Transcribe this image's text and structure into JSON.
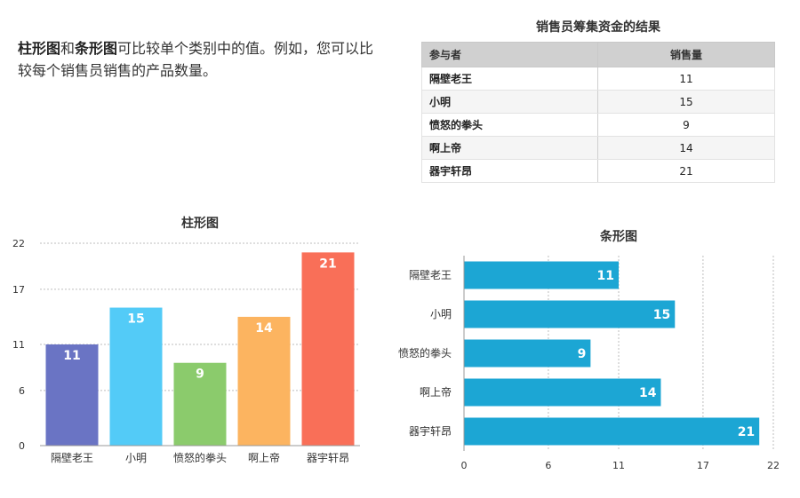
{
  "intro": {
    "bold1": "柱形图",
    "mid1": "和",
    "bold2": "条形图",
    "rest": "可比较单个类别中的值。例如，您可以比较每个销售员销售的产品数量。"
  },
  "table": {
    "title": "销售员筹集资金的结果",
    "headers": [
      "参与者",
      "销售量"
    ],
    "rows": [
      {
        "name": "隔壁老王",
        "value": "11"
      },
      {
        "name": "小明",
        "value": "15"
      },
      {
        "name": "愤怒的拳头",
        "value": "9"
      },
      {
        "name": "啊上帝",
        "value": "14"
      },
      {
        "name": "器宇轩昂",
        "value": "21"
      }
    ]
  },
  "chart_data": [
    {
      "type": "bar",
      "orientation": "vertical",
      "title": "柱形图",
      "categories": [
        "隔壁老王",
        "小明",
        "愤怒的拳头",
        "啊上帝",
        "器宇轩昂"
      ],
      "values": [
        11,
        15,
        9,
        14,
        21
      ],
      "colors": [
        "#6a74c4",
        "#53cbf7",
        "#8bcb6c",
        "#fcb460",
        "#f96f58"
      ],
      "yticks": [
        0,
        6,
        11,
        17,
        22
      ],
      "ylim": [
        0,
        22
      ],
      "grid": true
    },
    {
      "type": "bar",
      "orientation": "horizontal",
      "title": "条形图",
      "categories": [
        "隔壁老王",
        "小明",
        "愤怒的拳头",
        "啊上帝",
        "器宇轩昂"
      ],
      "values": [
        11,
        15,
        9,
        14,
        21
      ],
      "colors": [
        "#1ca6d4"
      ],
      "xticks": [
        0,
        6,
        11,
        17,
        22
      ],
      "xlim": [
        0,
        22
      ],
      "grid": true
    }
  ]
}
